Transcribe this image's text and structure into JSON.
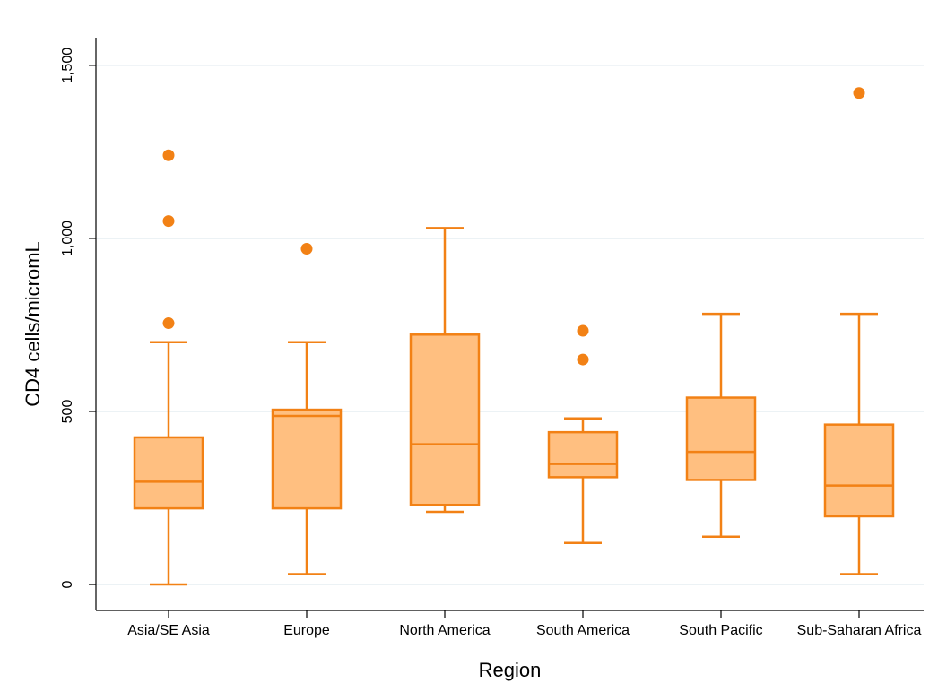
{
  "chart_data": {
    "type": "boxplot",
    "title": "",
    "xlabel": "Region",
    "ylabel": "CD4 cells/micromL",
    "ylim": [
      -75,
      1580
    ],
    "yticks": [
      0,
      500,
      1000,
      1500
    ],
    "ytick_labels": [
      "0",
      "500",
      "1,000",
      "1,500"
    ],
    "grid": true,
    "colors": {
      "fill": "#ffbf80",
      "line": "#f28115",
      "grid": "#e6eef2"
    },
    "categories": [
      "Asia/SE Asia",
      "Europe",
      "North America",
      "South America",
      "South Pacific",
      "Sub-Saharan Africa"
    ],
    "boxes": [
      {
        "whisker_low": 0,
        "q1": 220,
        "median": 297,
        "q3": 425,
        "whisker_high": 700,
        "outliers": [
          755,
          1050,
          1240
        ]
      },
      {
        "whisker_low": 30,
        "q1": 220,
        "median": 487,
        "q3": 505,
        "whisker_high": 700,
        "outliers": [
          970
        ]
      },
      {
        "whisker_low": 210,
        "q1": 230,
        "median": 405,
        "q3": 722,
        "whisker_high": 1030,
        "outliers": []
      },
      {
        "whisker_low": 120,
        "q1": 310,
        "median": 348,
        "q3": 440,
        "whisker_high": 480,
        "outliers": [
          650,
          733
        ]
      },
      {
        "whisker_low": 138,
        "q1": 302,
        "median": 383,
        "q3": 540,
        "whisker_high": 782,
        "outliers": []
      },
      {
        "whisker_low": 30,
        "q1": 197,
        "median": 286,
        "q3": 462,
        "whisker_high": 782,
        "outliers": [
          1420
        ]
      }
    ]
  }
}
